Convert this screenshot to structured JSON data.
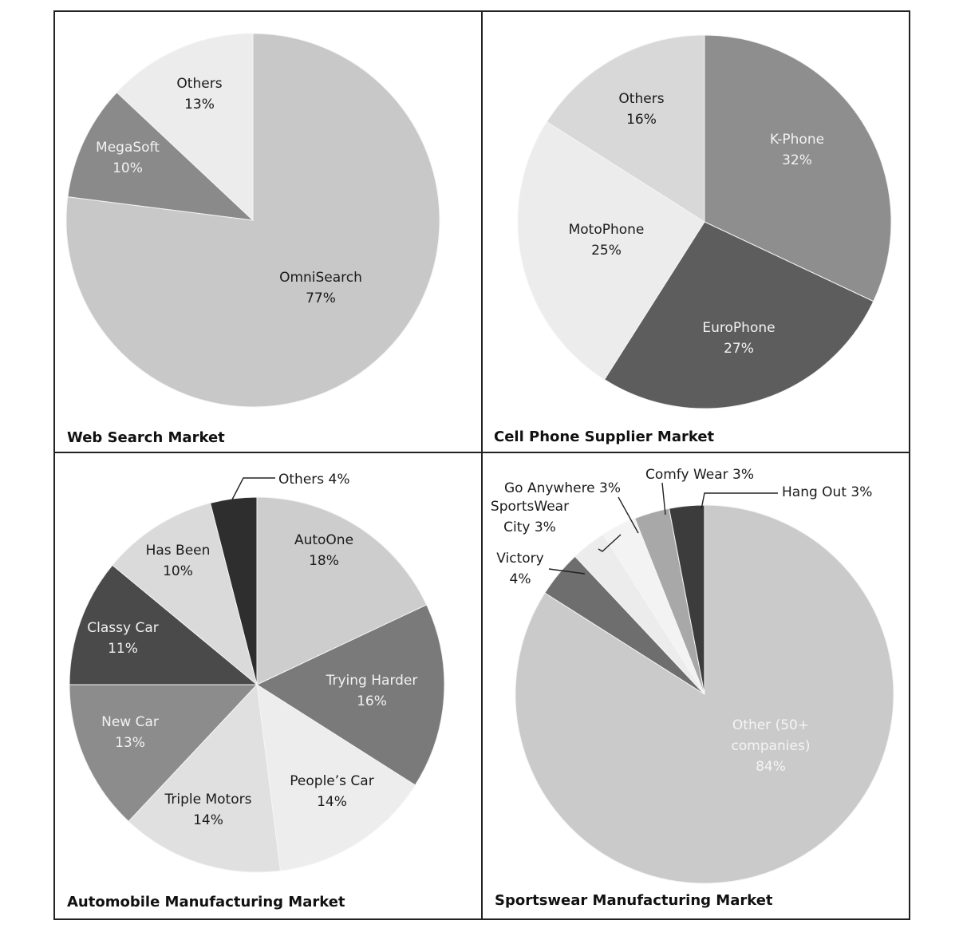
{
  "chart_data": [
    {
      "type": "pie",
      "title": "Web Search Market",
      "start": "12 o'clock",
      "direction": "clockwise",
      "slices": [
        {
          "name": "OmniSearch",
          "value": 77,
          "label_lines": [
            "OmniSearch",
            "77%"
          ],
          "color": "#c8c8c8",
          "text_color": "#1a1a1a"
        },
        {
          "name": "MegaSoft",
          "value": 10,
          "label_lines": [
            "MegaSoft",
            "10%"
          ],
          "color": "#8a8a8a",
          "text_color": "#f2f2f2"
        },
        {
          "name": "Others",
          "value": 13,
          "label_lines": [
            "Others",
            "13%"
          ],
          "color": "#ececec",
          "text_color": "#1a1a1a"
        }
      ]
    },
    {
      "type": "pie",
      "title": "Cell Phone Supplier Market",
      "start": "12 o'clock",
      "direction": "clockwise",
      "slices": [
        {
          "name": "K-Phone",
          "value": 32,
          "label_lines": [
            "K-Phone",
            "32%"
          ],
          "color": "#8e8e8e",
          "text_color": "#f2f2f2"
        },
        {
          "name": "EuroPhone",
          "value": 27,
          "label_lines": [
            "EuroPhone",
            "27%"
          ],
          "color": "#5d5d5d",
          "text_color": "#f2f2f2"
        },
        {
          "name": "MotoPhone",
          "value": 25,
          "label_lines": [
            "MotoPhone",
            "25%"
          ],
          "color": "#ececec",
          "text_color": "#1a1a1a"
        },
        {
          "name": "Others",
          "value": 16,
          "label_lines": [
            "Others",
            "16%"
          ],
          "color": "#d8d8d8",
          "text_color": "#1a1a1a"
        }
      ]
    },
    {
      "type": "pie",
      "title": "Automobile Manufacturing Market",
      "start": "12 o'clock",
      "direction": "clockwise",
      "slices": [
        {
          "name": "AutoOne",
          "value": 18,
          "label_lines": [
            "AutoOne",
            "18%"
          ],
          "color": "#cdcdcd",
          "text_color": "#1a1a1a"
        },
        {
          "name": "Trying Harder",
          "value": 16,
          "label_lines": [
            "Trying Harder",
            "16%"
          ],
          "color": "#7a7a7a",
          "text_color": "#f2f2f2"
        },
        {
          "name": "People's Car",
          "value": 14,
          "label_lines": [
            "People’s Car",
            "14%"
          ],
          "color": "#ededed",
          "text_color": "#1a1a1a"
        },
        {
          "name": "Triple Motors",
          "value": 14,
          "label_lines": [
            "Triple Motors",
            "14%"
          ],
          "color": "#e0e0e0",
          "text_color": "#1a1a1a"
        },
        {
          "name": "New Car",
          "value": 13,
          "label_lines": [
            "New Car",
            "13%"
          ],
          "color": "#8c8c8c",
          "text_color": "#f2f2f2"
        },
        {
          "name": "Classy Car",
          "value": 11,
          "label_lines": [
            "Classy Car",
            "11%"
          ],
          "color": "#4a4a4a",
          "text_color": "#f2f2f2"
        },
        {
          "name": "Has Been",
          "value": 10,
          "label_lines": [
            "Has Been",
            "10%"
          ],
          "color": "#dadada",
          "text_color": "#1a1a1a"
        },
        {
          "name": "Others",
          "value": 4,
          "label_lines": [
            "Others 4%"
          ],
          "color": "#2e2e2e",
          "text_color": "#1a1a1a",
          "callout": true
        }
      ]
    },
    {
      "type": "pie",
      "title": "Sportswear Manufacturing Market",
      "start": "12 o'clock",
      "direction": "clockwise",
      "slices": [
        {
          "name": "Other (50+ companies)",
          "value": 84,
          "label_lines": [
            "Other (50+",
            "companies)",
            "84%"
          ],
          "color": "#cacaca",
          "text_color": "#f4f4f4"
        },
        {
          "name": "Victory",
          "value": 4,
          "label_lines": [
            "Victory",
            "4%"
          ],
          "color": "#6e6e6e",
          "text_color": "#1a1a1a",
          "callout": true
        },
        {
          "name": "SportsWear City",
          "value": 3,
          "label_lines": [
            "SportsWear",
            "City 3%"
          ],
          "color": "#ececec",
          "text_color": "#1a1a1a",
          "callout": true
        },
        {
          "name": "Go Anywhere",
          "value": 3,
          "label_lines": [
            "Go Anywhere 3%"
          ],
          "color": "#f3f3f3",
          "text_color": "#1a1a1a",
          "callout": true
        },
        {
          "name": "Comfy Wear",
          "value": 3,
          "label_lines": [
            "Comfy Wear 3%"
          ],
          "color": "#a8a8a8",
          "text_color": "#1a1a1a",
          "callout": true
        },
        {
          "name": "Hang Out",
          "value": 3,
          "label_lines": [
            "Hang Out 3%"
          ],
          "color": "#3c3c3c",
          "text_color": "#1a1a1a",
          "callout": true
        }
      ]
    }
  ]
}
